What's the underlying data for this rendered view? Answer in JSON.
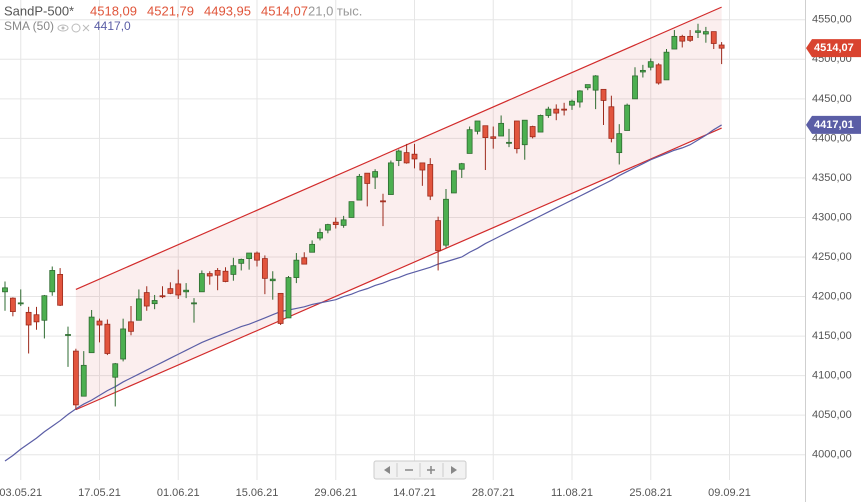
{
  "chart_data": {
    "type": "candlestick",
    "title": "SandP-500*",
    "header_values": [
      "4518,09",
      "4521,79",
      "4493,95",
      "4514,07"
    ],
    "volume_label": "21,0 тыс.",
    "categories": [
      null,
      null,
      "03.05.21",
      null,
      null,
      null,
      null,
      null,
      null,
      null,
      null,
      null,
      "17.05.21",
      null,
      null,
      null,
      null,
      null,
      null,
      null,
      null,
      null,
      "01.06.21",
      null,
      null,
      null,
      null,
      null,
      null,
      null,
      null,
      null,
      "15.06.21",
      null,
      null,
      null,
      null,
      null,
      null,
      null,
      null,
      null,
      "29.06.21",
      null,
      null,
      null,
      null,
      null,
      null,
      null,
      null,
      null,
      "14.07.21",
      null,
      null,
      null,
      null,
      null,
      null,
      null,
      null,
      null,
      "28.07.21",
      null,
      null,
      null,
      null,
      null,
      null,
      null,
      null,
      null,
      "11.08.21",
      null,
      null,
      null,
      null,
      null,
      null,
      null,
      null,
      null,
      "25.08.21",
      null,
      null,
      null,
      null,
      null,
      null,
      null,
      null,
      null,
      "09.09.21"
    ],
    "open": [
      4206,
      4198,
      4191,
      4180,
      4177,
      4170,
      4206,
      4228,
      4152,
      4131,
      4074,
      4129,
      4169,
      4165,
      4098,
      4121,
      4168,
      4170,
      4205,
      4191,
      4201,
      4210,
      4216,
      4206,
      4191,
      4206,
      4229,
      4233,
      4232,
      4228,
      4242,
      4248,
      4255,
      4248,
      4220,
      4204,
      4173,
      4224,
      4249,
      4256,
      4274,
      4284,
      4294,
      4290,
      4300,
      4322,
      4356,
      4351,
      4321,
      4329,
      4372,
      4382,
      4380,
      4369,
      4367,
      4296,
      4265,
      4331,
      4361,
      4381,
      4409,
      4416,
      4402,
      4403,
      4395,
      4422,
      4392,
      4415,
      4408,
      4429,
      4437,
      4437,
      4442,
      4446,
      4464,
      4461,
      4462,
      4440,
      4382,
      4410,
      4450,
      4484,
      4490,
      4493,
      4474,
      4513,
      4529,
      4529,
      4534,
      4532,
      4535,
      4518.09,
      null
    ],
    "high": [
      4219,
      4199,
      4209,
      4187,
      4187,
      4202,
      4238,
      4236,
      4162,
      4134,
      4131,
      4183,
      4172,
      4171,
      4116,
      4172,
      4188,
      4209,
      4213,
      4202,
      4213,
      4218,
      4234,
      4217,
      4198,
      4233,
      4232,
      4236,
      4237,
      4249,
      4248,
      4255,
      4257,
      4252,
      4232,
      4204,
      4226,
      4255,
      4256,
      4271,
      4286,
      4292,
      4300,
      4302,
      4320,
      4355,
      4356,
      4361,
      4330,
      4372,
      4386,
      4393,
      4393,
      4369,
      4375,
      4301,
      4336,
      4359,
      4369,
      4415,
      4422,
      4416,
      4415,
      4429,
      4412,
      4422,
      4423,
      4416,
      4430,
      4440,
      4443,
      4445,
      4449,
      4461,
      4468,
      4480,
      4462,
      4454,
      4418,
      4444,
      4490,
      4493,
      4501,
      4495,
      4513,
      4537,
      4531,
      4537,
      4545,
      4541,
      4535,
      4521.79,
      null
    ],
    "low": [
      4182,
      4175,
      4188,
      4128,
      4158,
      4147,
      4201,
      4188,
      4111,
      4057,
      4074,
      4129,
      4142,
      4126,
      4061,
      4118,
      4151,
      4170,
      4182,
      4184,
      4198,
      4203,
      4197,
      4198,
      4167,
      4206,
      4215,
      4208,
      4218,
      4220,
      4233,
      4234,
      4238,
      4203,
      4196,
      4164,
      4173,
      4217,
      4241,
      4256,
      4271,
      4280,
      4286,
      4287,
      4300,
      4322,
      4314,
      4336,
      4289,
      4329,
      4365,
      4368,
      4362,
      4340,
      4322,
      4233,
      4262,
      4331,
      4350,
      4381,
      4405,
      4360,
      4387,
      4403,
      4389,
      4381,
      4373,
      4400,
      4408,
      4426,
      4423,
      4429,
      4436,
      4439,
      4461,
      4437,
      4417,
      4395,
      4367,
      4410,
      4450,
      4477,
      4486,
      4468,
      4474,
      4513,
      4515,
      4522,
      4527,
      4521,
      4513,
      4493.95,
      null
    ],
    "close": [
      4211,
      4181,
      4192,
      4164,
      4168,
      4201,
      4233,
      4189,
      4152,
      4063,
      4113,
      4174,
      4164,
      4128,
      4115,
      4159,
      4156,
      4197,
      4188,
      4195,
      4200,
      4204,
      4202,
      4208,
      4192,
      4229,
      4226,
      4227,
      4219,
      4239,
      4247,
      4255,
      4246,
      4223,
      4222,
      4166,
      4224,
      4246,
      4241,
      4266,
      4281,
      4291,
      4291,
      4297,
      4320,
      4352,
      4343,
      4358,
      4320,
      4369,
      4384,
      4369,
      4374,
      4360,
      4327,
      4258,
      4323,
      4359,
      4368,
      4411,
      4422,
      4401,
      4400,
      4419,
      4395,
      4387,
      4423,
      4402,
      4429,
      4437,
      4432,
      4436,
      4447,
      4460,
      4468,
      4479,
      4448,
      4400,
      4406,
      4442,
      4479,
      4486,
      4497,
      4470,
      4509,
      4529,
      4523,
      4524,
      4536,
      4535,
      4520,
      4514.07,
      null
    ],
    "up_color": "#4caf50",
    "down_color": "#e2553e",
    "indicator": {
      "name": "SMA (50)",
      "value_label": "4417,0",
      "color": "#5b5ea6",
      "values": [
        3992,
        3999,
        4007,
        4014,
        4021,
        4029,
        4036,
        4043,
        4051,
        4058,
        4064,
        4069,
        4075,
        4081,
        4086,
        4092,
        4097,
        4102,
        4107,
        4112,
        4117,
        4122,
        4127,
        4132,
        4137,
        4142,
        4146,
        4150,
        4154,
        4158,
        4162,
        4165,
        4169,
        4173,
        4177,
        4181,
        4183,
        4185,
        4187,
        4190,
        4192,
        4194,
        4196,
        4200,
        4203,
        4207,
        4210,
        4214,
        4217,
        4221,
        4224,
        4228,
        4231,
        4234,
        4237,
        4241,
        4244,
        4247,
        4250,
        4256,
        4261,
        4267,
        4272,
        4277,
        4282,
        4287,
        4292,
        4297,
        4302,
        4307,
        4312,
        4317,
        4322,
        4327,
        4332,
        4337,
        4342,
        4347,
        4353,
        4358,
        4363,
        4368,
        4373,
        4377,
        4381,
        4385,
        4388,
        4392,
        4398,
        4404,
        4411,
        4417,
        null
      ]
    },
    "channel": {
      "color": "#d22b2b",
      "x": [
        9,
        91
      ],
      "upper": [
        4209,
        4566
      ],
      "lower": [
        4057,
        4413
      ]
    },
    "tags": [
      {
        "value": 4514.07,
        "label": "4514,07",
        "color": "#d9432f"
      },
      {
        "value": 4417.01,
        "label": "4417,01",
        "color": "#5b5ea6"
      }
    ],
    "ylim": [
      3968,
      4575
    ],
    "yticks": [
      {
        "value": 4000,
        "label": "4000,00"
      },
      {
        "value": 4050,
        "label": "4050,00"
      },
      {
        "value": 4100,
        "label": "4100,00"
      },
      {
        "value": 4150,
        "label": "4150,00"
      },
      {
        "value": 4200,
        "label": "4200,00"
      },
      {
        "value": 4250,
        "label": "4250,00"
      },
      {
        "value": 4300,
        "label": "4300,00"
      },
      {
        "value": 4350,
        "label": "4350,00"
      },
      {
        "value": 4400,
        "label": "4400,00"
      },
      {
        "value": 4450,
        "label": "4450,00"
      },
      {
        "value": 4500,
        "label": "4500,00"
      },
      {
        "value": 4550,
        "label": "4550,00"
      }
    ],
    "grid": true
  }
}
